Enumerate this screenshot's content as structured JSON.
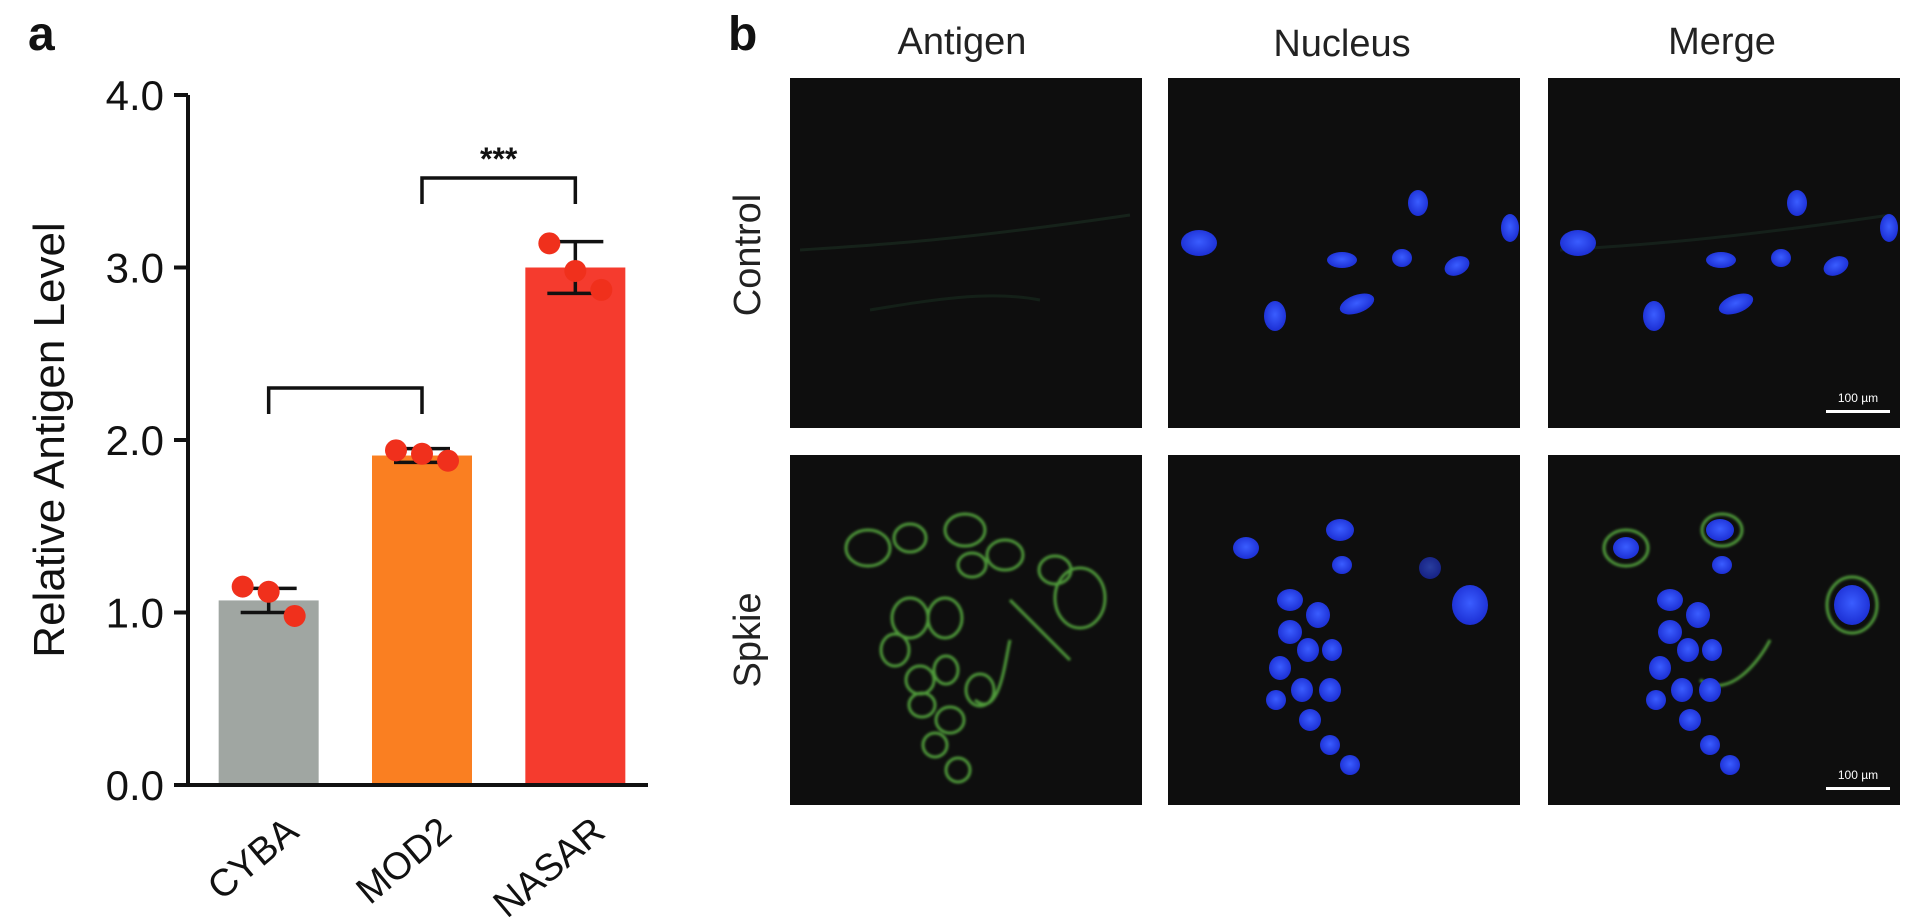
{
  "panel_a": {
    "label": "a"
  },
  "panel_b": {
    "label": "b",
    "columns": [
      "Antigen",
      "Nucleus",
      "Merge"
    ],
    "rows": [
      "Control",
      "Spkie"
    ],
    "scale_bar": "100 µm"
  },
  "chart_data": {
    "type": "bar",
    "title": "",
    "xlabel": "",
    "ylabel": "Relative Antigen Level",
    "ylim": [
      0,
      4
    ],
    "yticks": [
      "0.0",
      "1.0",
      "2.0",
      "3.0",
      "4.0"
    ],
    "categories": [
      "CYBA",
      "MOD2",
      "NASAR"
    ],
    "values": [
      1.07,
      1.91,
      3.0
    ],
    "errors": [
      0.07,
      0.04,
      0.15
    ],
    "points": [
      [
        1.15,
        1.12,
        0.98
      ],
      [
        1.94,
        1.92,
        1.88
      ],
      [
        3.14,
        2.98,
        2.87
      ]
    ],
    "colors": [
      "#a0a6a2",
      "#fa7f21",
      "#f53b2e"
    ],
    "point_color": "#f0301c",
    "significance": [
      {
        "from": 0,
        "to": 1,
        "label": ""
      },
      {
        "from": 1,
        "to": 2,
        "label": "***"
      }
    ],
    "grid": false,
    "legend": "none"
  }
}
